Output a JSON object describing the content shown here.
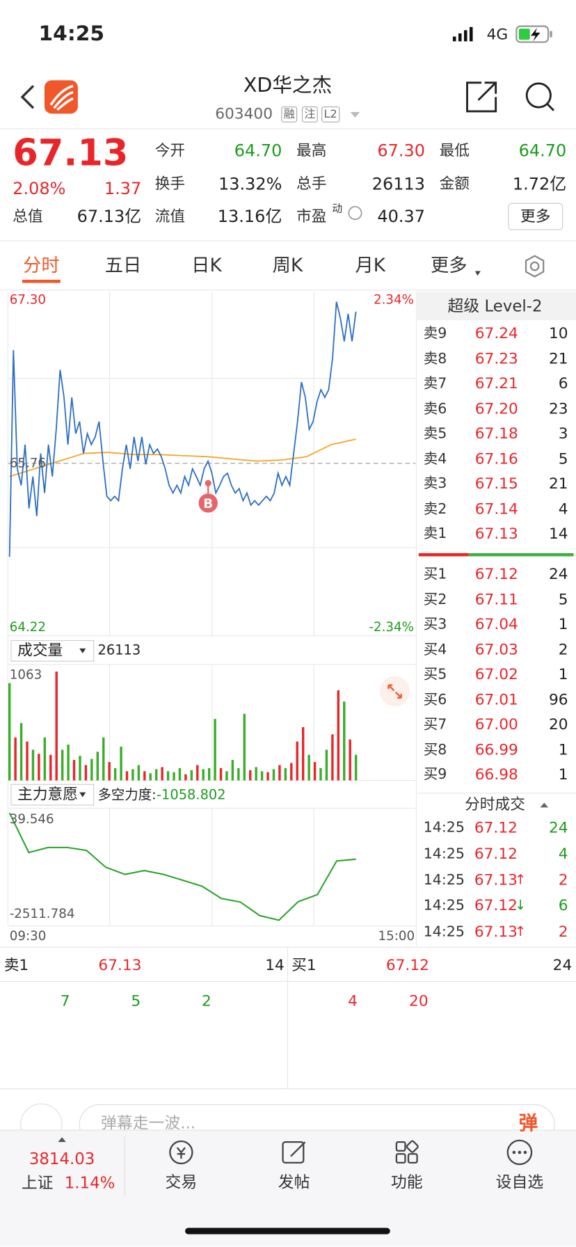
{
  "status_bar": {
    "time": "14:25",
    "network": "4G"
  },
  "header": {
    "title": "XD华之杰",
    "code": "603400",
    "tags": [
      "融",
      "注",
      "L2"
    ]
  },
  "quote": {
    "price": "67.13",
    "change_pct": "2.08%",
    "change": "1.37",
    "fields": [
      {
        "label": "今开",
        "value": "64.70",
        "color": "green"
      },
      {
        "label": "最高",
        "value": "67.30",
        "color": "red"
      },
      {
        "label": "最低",
        "value": "64.70",
        "color": "green"
      },
      {
        "label": "换手",
        "value": "13.32%"
      },
      {
        "label": "总手",
        "value": "26113"
      },
      {
        "label": "金额",
        "value": "1.72亿"
      },
      {
        "label": "总值",
        "value": "67.13亿"
      },
      {
        "label": "流值",
        "value": "13.16亿"
      },
      {
        "label": "市盈",
        "value": "40.37"
      }
    ],
    "pe_sup": "动",
    "more": "更多"
  },
  "tabs": {
    "items": [
      "分时",
      "五日",
      "日K",
      "周K",
      "月K",
      "更多"
    ],
    "active": 0
  },
  "intraday": {
    "ylim": [
      64.22,
      67.3
    ],
    "yticks": [
      {
        "value": 67.3,
        "label": "67.30"
      },
      {
        "value": 64.22,
        "label": "64.22"
      }
    ],
    "y2lim": [
      -2.34,
      2.34
    ],
    "y2ticks": [
      {
        "value": 2.34,
        "label": "2.34%"
      },
      {
        "value": -2.34,
        "label": "-2.34%"
      }
    ],
    "prev_close": 65.76,
    "marker": "B",
    "price": [
      64.91,
      66.79,
      65.71,
      65.56,
      65.93,
      65.35,
      65.64,
      65.28,
      65.85,
      65.49,
      65.93,
      65.64,
      66.07,
      66.61,
      66.36,
      65.93,
      66.36,
      66.03,
      66.14,
      65.85,
      66.03,
      65.93,
      66.0,
      66.14,
      65.78,
      65.46,
      65.42,
      65.46,
      65.42,
      65.71,
      65.93,
      65.71,
      66.0,
      65.78,
      66.0,
      65.75,
      65.93,
      65.85,
      65.89,
      65.82,
      65.71,
      65.56,
      65.49,
      65.56,
      65.49,
      65.64,
      65.56,
      65.71,
      65.64,
      65.56,
      65.71,
      65.78,
      65.67,
      65.49,
      65.56,
      65.64,
      65.67,
      65.56,
      65.49,
      65.53,
      65.42,
      65.49,
      65.38,
      65.42,
      65.38,
      65.42,
      65.46,
      65.42,
      65.49,
      65.67,
      65.56,
      65.64,
      65.56,
      65.85,
      66.14,
      66.5,
      66.36,
      66.07,
      66.14,
      66.32,
      66.43,
      66.36,
      66.43,
      66.72,
      67.23,
      67.08,
      66.87,
      67.12,
      66.87,
      67.14
    ],
    "avg": [
      65.64,
      65.71,
      65.78,
      65.85,
      65.86,
      65.84,
      65.84,
      65.83,
      65.82,
      65.8,
      65.78,
      65.79,
      65.82,
      65.93,
      65.98
    ]
  },
  "volume": {
    "label": "成交量",
    "total": "26113",
    "ylim": [
      0,
      1063
    ],
    "yticks": [
      1063
    ],
    "values": [
      950,
      420,
      560,
      380,
      300,
      260,
      420,
      250,
      1063,
      300,
      350,
      200,
      240,
      150,
      210,
      280,
      420,
      180,
      120,
      330,
      90,
      110,
      150,
      90,
      70,
      110,
      130,
      90,
      80,
      120,
      60,
      100,
      150,
      110,
      120,
      600,
      120,
      90,
      200,
      120,
      650,
      100,
      130,
      90,
      80,
      110,
      150,
      120,
      170,
      380,
      520,
      250,
      180,
      120,
      300,
      450,
      880,
      770,
      400,
      250
    ],
    "up": [
      false,
      true,
      false,
      true,
      false,
      true,
      false,
      true,
      true,
      false,
      false,
      true,
      false,
      true,
      false,
      false,
      false,
      true,
      false,
      false,
      true,
      false,
      false,
      true,
      false,
      false,
      true,
      false,
      false,
      false,
      true,
      false,
      true,
      false,
      false,
      false,
      true,
      false,
      false,
      false,
      false,
      true,
      false,
      false,
      true,
      false,
      true,
      false,
      true,
      true,
      true,
      false,
      true,
      false,
      false,
      true,
      true,
      false,
      true,
      false
    ]
  },
  "indicator": {
    "label": "主力意愿",
    "stat_label": "多空力度:",
    "stat_value": "-1058.802",
    "ylim": [
      -2511.784,
      39.546
    ],
    "yticks": [
      39.546,
      -2511.784
    ],
    "values": [
      39.546,
      -900,
      -780,
      -780,
      -850,
      -1250,
      -1420,
      -1330,
      -1420,
      -1560,
      -1700,
      -1990,
      -2080,
      -2400,
      -2510,
      -2070,
      -1900,
      -1100,
      -1058.802
    ],
    "xticks": [
      "09:30",
      "15:00"
    ]
  },
  "order_book": {
    "title": "超级 Level-2",
    "asks": [
      {
        "label": "卖9",
        "price": "67.24",
        "volume": "10"
      },
      {
        "label": "卖8",
        "price": "67.23",
        "volume": "21"
      },
      {
        "label": "卖7",
        "price": "67.21",
        "volume": "6"
      },
      {
        "label": "卖6",
        "price": "67.20",
        "volume": "23"
      },
      {
        "label": "卖5",
        "price": "67.18",
        "volume": "3"
      },
      {
        "label": "卖4",
        "price": "67.16",
        "volume": "5"
      },
      {
        "label": "卖3",
        "price": "67.15",
        "volume": "21"
      },
      {
        "label": "卖2",
        "price": "67.14",
        "volume": "4"
      },
      {
        "label": "卖1",
        "price": "67.13",
        "volume": "14"
      }
    ],
    "bids": [
      {
        "label": "买1",
        "price": "67.12",
        "volume": "24"
      },
      {
        "label": "买2",
        "price": "67.11",
        "volume": "5"
      },
      {
        "label": "买3",
        "price": "67.04",
        "volume": "1"
      },
      {
        "label": "买4",
        "price": "67.03",
        "volume": "2"
      },
      {
        "label": "买5",
        "price": "67.02",
        "volume": "1"
      },
      {
        "label": "买6",
        "price": "67.01",
        "volume": "96"
      },
      {
        "label": "买7",
        "price": "67.00",
        "volume": "20"
      },
      {
        "label": "买8",
        "price": "66.99",
        "volume": "1"
      },
      {
        "label": "买9",
        "price": "66.98",
        "volume": "1"
      }
    ]
  },
  "trades": {
    "title": "分时成交",
    "rows": [
      {
        "time": "14:25",
        "price": "67.12",
        "volume": "24",
        "color": "green"
      },
      {
        "time": "14:25",
        "price": "67.12",
        "volume": "4",
        "color": "green"
      },
      {
        "time": "14:25",
        "price": "67.13",
        "arrow": "↑",
        "volume": "2",
        "color": "red"
      },
      {
        "time": "14:25",
        "price": "67.12",
        "arrow": "↓",
        "volume": "6",
        "color": "green"
      },
      {
        "time": "14:25",
        "price": "67.13",
        "arrow": "↑",
        "volume": "2",
        "color": "red"
      }
    ]
  },
  "level1": {
    "ask_label": "卖1",
    "ask_price": "67.13",
    "ask_volume": "14",
    "bid_label": "买1",
    "bid_price": "67.12",
    "bid_volume": "24",
    "sell_queue": [
      "7",
      "5",
      "2"
    ],
    "buy_queue": [
      "4",
      "20"
    ]
  },
  "comment": {
    "placeholder": "弹幕走一波...",
    "button": "弹"
  },
  "tab_bar": {
    "index_value": "3814.03",
    "index_name": "上证",
    "index_change": "1.14%",
    "items": [
      "交易",
      "发帖",
      "功能",
      "设自选"
    ]
  }
}
